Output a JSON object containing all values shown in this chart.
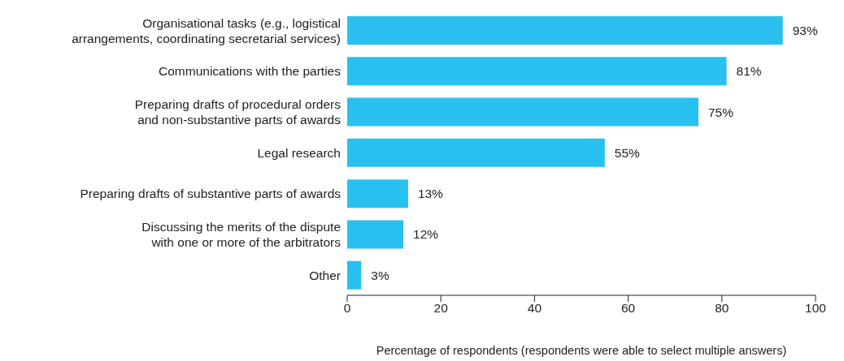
{
  "chart_data": {
    "type": "bar",
    "orientation": "horizontal",
    "categories": [
      "Organisational tasks (e.g., logistical\narrangements, coordinating secretarial services)",
      "Communications with the parties",
      "Preparing drafts of procedural orders\nand non-substantive parts of awards",
      "Legal research",
      "Preparing drafts of substantive parts of awards",
      "Discussing the merits of the dispute\nwith one or more of the arbitrators",
      "Other"
    ],
    "values": [
      93,
      81,
      75,
      55,
      13,
      12,
      3
    ],
    "value_labels": [
      "93%",
      "81%",
      "75%",
      "55%",
      "13%",
      "12%",
      "3%"
    ],
    "color": "#29c0f0",
    "xlim": [
      0,
      100
    ],
    "xticks": [
      0,
      20,
      40,
      60,
      80,
      100
    ],
    "xlabel": "Percentage of respondents (respondents were able to select multiple answers)",
    "grid": false
  }
}
